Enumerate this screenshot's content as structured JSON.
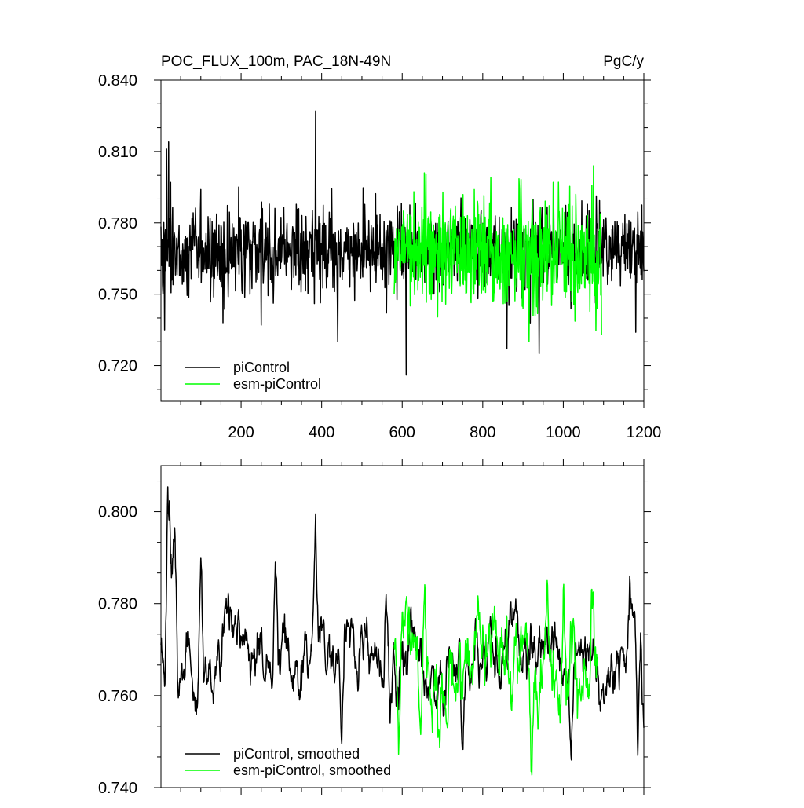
{
  "chart_data": [
    {
      "type": "line",
      "title": "POC_FLUX_100m, PAC_18N-49N",
      "units": "PgC/y",
      "xlim": [
        1,
        1200
      ],
      "ylim": [
        0.705,
        0.84
      ],
      "x_ticks": [
        200,
        400,
        600,
        800,
        1000,
        1200
      ],
      "y_ticks": [
        "0.720",
        "0.750",
        "0.780",
        "0.810",
        "0.840"
      ],
      "legend": [
        {
          "label": "piControl",
          "color": "#000000"
        },
        {
          "label": "esm-piControl",
          "color": "#00ff00"
        }
      ],
      "series": [
        {
          "name": "piControl",
          "color": "#000000",
          "x_start": 1,
          "x_end": 1200,
          "mean": 0.768,
          "amplitude": 0.009,
          "points": [
            [
              5,
              0.754
            ],
            [
              10,
              0.735
            ],
            [
              15,
              0.811
            ],
            [
              20,
              0.814
            ],
            [
              25,
              0.797
            ],
            [
              100,
              0.794
            ],
            [
              155,
              0.738
            ],
            [
              250,
              0.737
            ],
            [
              385,
              0.827
            ],
            [
              440,
              0.73
            ],
            [
              610,
              0.716
            ],
            [
              860,
              0.727
            ],
            [
              940,
              0.725
            ],
            [
              1180,
              0.734
            ]
          ]
        },
        {
          "name": "esm-piControl",
          "color": "#00ff00",
          "x_start": 580,
          "x_end": 1095,
          "mean": 0.767,
          "amplitude": 0.012,
          "points": [
            [
              655,
              0.801
            ],
            [
              820,
              0.799
            ],
            [
              915,
              0.73
            ],
            [
              975,
              0.797
            ],
            [
              1075,
              0.804
            ],
            [
              1095,
              0.733
            ]
          ]
        }
      ]
    },
    {
      "type": "line",
      "title": "",
      "xlim": [
        1,
        1200
      ],
      "ylim": [
        0.74,
        0.81
      ],
      "x_ticks": [
        200,
        400,
        600,
        800,
        1000,
        1200
      ],
      "y_ticks": [
        "0.740",
        "0.760",
        "0.780",
        "0.800"
      ],
      "legend": [
        {
          "label": "piControl, smoothed",
          "color": "#000000"
        },
        {
          "label": "esm-piControl, smoothed",
          "color": "#00ff00"
        }
      ],
      "series": [
        {
          "name": "piControl, smoothed",
          "color": "#000000",
          "x_start": 1,
          "x_end": 1200,
          "mean": 0.7685,
          "amplitude": 0.0045,
          "points": [
            [
              1,
              0.771
            ],
            [
              10,
              0.762
            ],
            [
              18,
              0.795
            ],
            [
              22,
              0.8005
            ],
            [
              28,
              0.787
            ],
            [
              35,
              0.7965
            ],
            [
              45,
              0.76
            ],
            [
              100,
              0.79
            ],
            [
              285,
              0.789
            ],
            [
              385,
              0.7995
            ],
            [
              395,
              0.775
            ],
            [
              450,
              0.7495
            ],
            [
              560,
              0.782
            ],
            [
              570,
              0.754
            ],
            [
              750,
              0.749
            ],
            [
              1020,
              0.746
            ],
            [
              1165,
              0.786
            ],
            [
              1185,
              0.747
            ],
            [
              1200,
              0.753
            ]
          ]
        },
        {
          "name": "esm-piControl, smoothed",
          "color": "#00ff00",
          "x_start": 580,
          "x_end": 1085,
          "mean": 0.7665,
          "amplitude": 0.0065,
          "points": [
            [
              580,
              0.771
            ],
            [
              590,
              0.754
            ],
            [
              600,
              0.778
            ],
            [
              655,
              0.781
            ],
            [
              860,
              0.777
            ],
            [
              920,
              0.7435
            ],
            [
              1000,
              0.783
            ],
            [
              1045,
              0.76
            ],
            [
              1070,
              0.783
            ],
            [
              1085,
              0.768
            ]
          ]
        }
      ]
    }
  ]
}
